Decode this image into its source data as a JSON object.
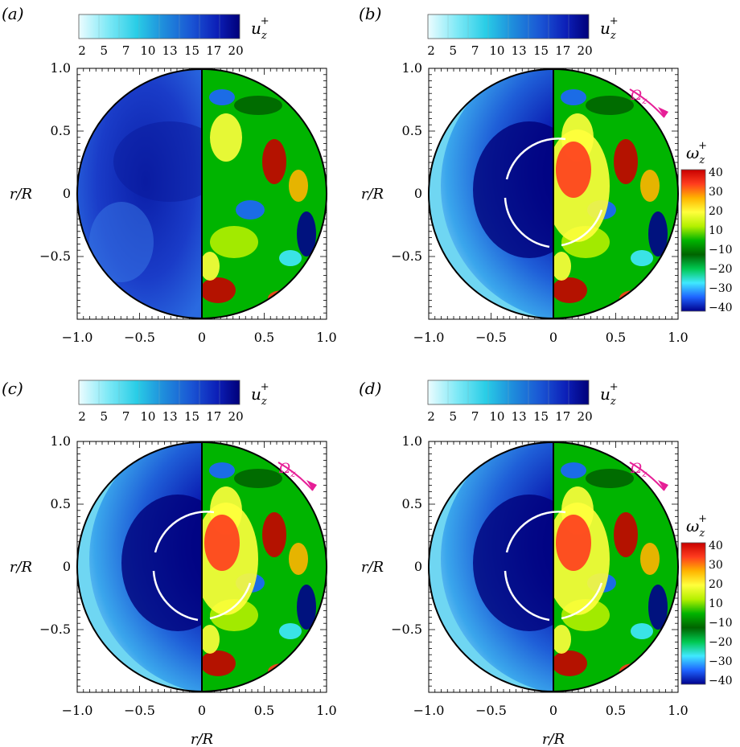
{
  "figure": {
    "axis_label_r": "r/R",
    "colorbar_u_label": "u",
    "colorbar_u_sub": "z",
    "colorbar_u_sup": "+",
    "colorbar_u_ticks": [
      "2",
      "5",
      "7",
      "10",
      "13",
      "15",
      "17",
      "20"
    ],
    "colorbar_w_label": "ω",
    "colorbar_w_sub": "z",
    "colorbar_w_sup": "+",
    "colorbar_w_ticks": [
      "40",
      "30",
      "20",
      "10",
      "−10",
      "−20",
      "−30",
      "−40"
    ],
    "rotation_label": "Ω",
    "rotation_sub": "z",
    "x_ticks": [
      "−1.0",
      "−0.5",
      "0",
      "0.5",
      "1.0"
    ],
    "y_ticks": [
      "1.0",
      "0.5",
      "0",
      "−0.5"
    ],
    "colors": {
      "u_low": "#e8fbff",
      "u_high": "#00007a",
      "rotation_arrow": "#e61e96",
      "vortex_arrow": "#ffffff"
    },
    "panels": [
      {
        "label": "(a)",
        "rotating": false,
        "show_wz_colorbar": false
      },
      {
        "label": "(b)",
        "rotating": true,
        "show_wz_colorbar": true
      },
      {
        "label": "(c)",
        "rotating": true,
        "show_wz_colorbar": false
      },
      {
        "label": "(d)",
        "rotating": true,
        "show_wz_colorbar": true
      }
    ]
  }
}
